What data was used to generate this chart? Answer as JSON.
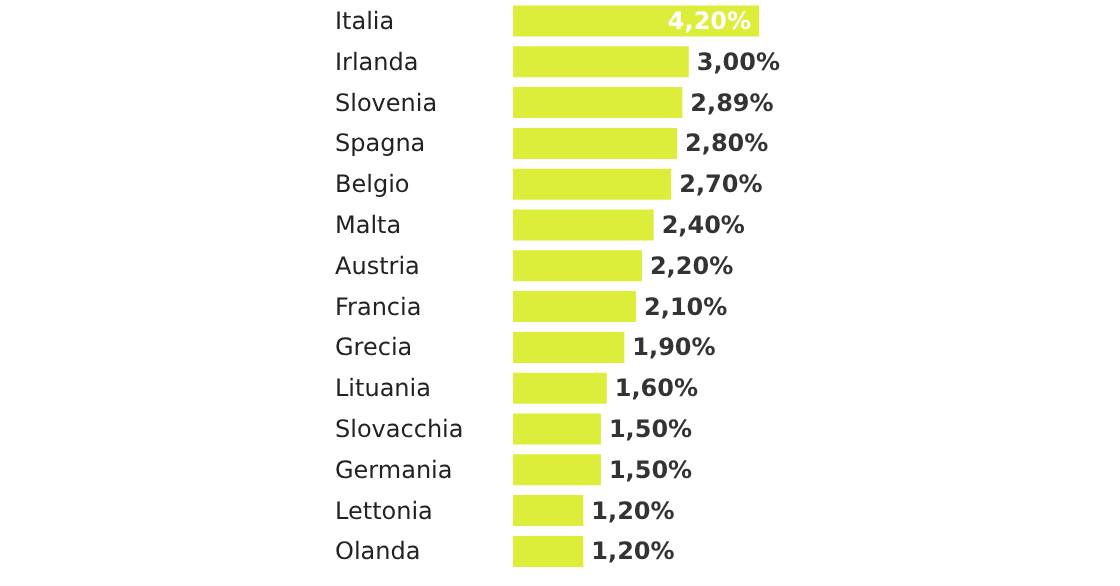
{
  "chart_data": {
    "type": "bar",
    "orientation": "horizontal",
    "categories": [
      "Italia",
      "Irlanda",
      "Slovenia",
      "Spagna",
      "Belgio",
      "Malta",
      "Austria",
      "Francia",
      "Grecia",
      "Lituania",
      "Slovacchia",
      "Germania",
      "Lettonia",
      "Olanda"
    ],
    "values": [
      4.2,
      3.0,
      2.89,
      2.8,
      2.7,
      2.4,
      2.2,
      2.1,
      1.9,
      1.6,
      1.5,
      1.5,
      1.2,
      1.2
    ],
    "value_labels": [
      "4,20%",
      "3,00%",
      "2,89%",
      "2,80%",
      "2,70%",
      "2,40%",
      "2,20%",
      "2,10%",
      "1,90%",
      "1,60%",
      "1,50%",
      "1,50%",
      "1,20%",
      "1,20%"
    ],
    "color": "#dcee3a",
    "grid": false
  }
}
